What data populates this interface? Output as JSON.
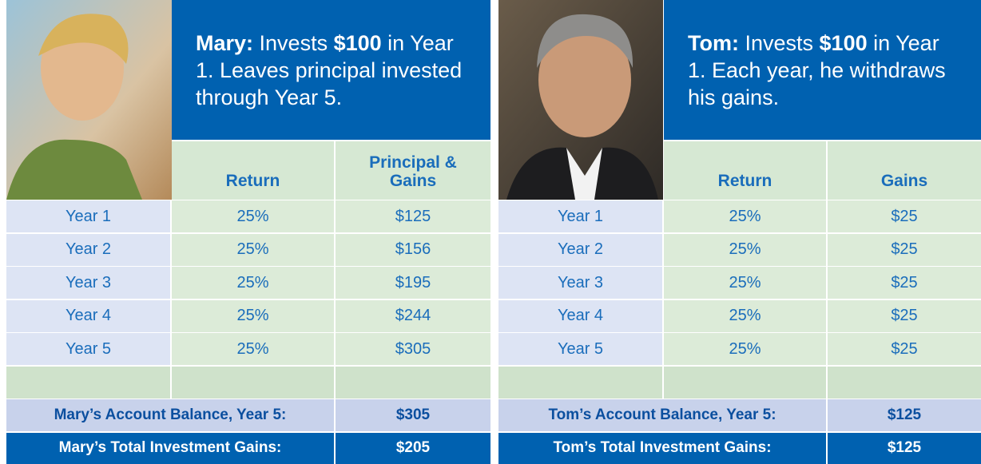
{
  "panels": [
    {
      "intro": [
        {
          "text": "Mary:",
          "bold": true
        },
        {
          "text": " Invests "
        },
        {
          "text": "$100",
          "bold": true
        },
        {
          "text": " in Year 1. Leaves principal invested through Year 5."
        }
      ],
      "columns": [
        "Return",
        "Principal & Gains"
      ],
      "rows": [
        [
          "Year 1",
          "25%",
          "$125"
        ],
        [
          "Year 2",
          "25%",
          "$156"
        ],
        [
          "Year 3",
          "25%",
          "$195"
        ],
        [
          "Year 4",
          "25%",
          "$244"
        ],
        [
          "Year 5",
          "25%",
          "$305"
        ]
      ],
      "summary": [
        [
          "Mary’s Account Balance, Year 5:",
          "$305"
        ],
        [
          "Mary’s Total Investment Gains:",
          "$205"
        ]
      ]
    },
    {
      "intro": [
        {
          "text": "Tom:",
          "bold": true
        },
        {
          "text": " Invests "
        },
        {
          "text": "$100",
          "bold": true
        },
        {
          "text": " in Year 1. Each year, he withdraws his gains."
        }
      ],
      "columns": [
        "Return",
        "Gains"
      ],
      "rows": [
        [
          "Year 1",
          "25%",
          "$25"
        ],
        [
          "Year 2",
          "25%",
          "$25"
        ],
        [
          "Year 3",
          "25%",
          "$25"
        ],
        [
          "Year 4",
          "25%",
          "$25"
        ],
        [
          "Year 5",
          "25%",
          "$25"
        ]
      ],
      "summary": [
        [
          "Tom’s Account Balance, Year 5:",
          "$125"
        ],
        [
          "Tom’s Total Investment Gains:",
          "$125"
        ]
      ]
    }
  ]
}
